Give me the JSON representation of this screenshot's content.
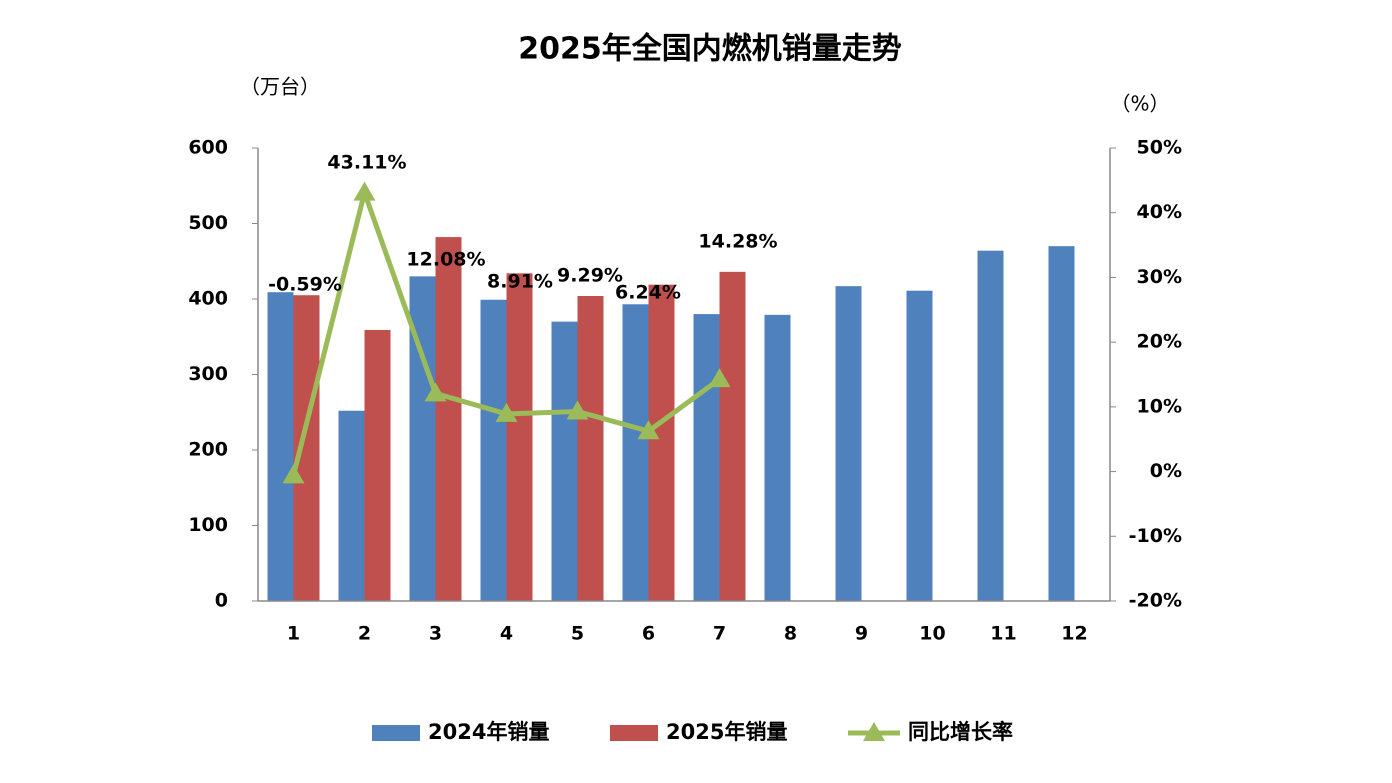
{
  "chart_data": {
    "type": "bar_line",
    "title": "2025年全国内燃机销量走势",
    "y_label": "（万台）",
    "y2_label": "（%）",
    "categories": [
      "1",
      "2",
      "3",
      "4",
      "5",
      "6",
      "7",
      "8",
      "9",
      "10",
      "11",
      "12"
    ],
    "series": [
      {
        "name": "2024年销量",
        "type": "bar",
        "color": "#4f81bd",
        "values": [
          409,
          252,
          430,
          399,
          370,
          393,
          380,
          379,
          417,
          411,
          464,
          470
        ]
      },
      {
        "name": "2025年销量",
        "type": "bar",
        "color": "#c0504d",
        "values": [
          405,
          359,
          482,
          434,
          404,
          419,
          436,
          null,
          null,
          null,
          null,
          null
        ]
      },
      {
        "name": "同比增长率",
        "type": "line",
        "axis": "y2",
        "color": "#9bbb59",
        "marker": "triangle",
        "values": [
          -0.59,
          43.11,
          12.08,
          8.91,
          9.29,
          6.24,
          14.28,
          null,
          null,
          null,
          null,
          null
        ],
        "value_labels": [
          "-0.59%",
          "43.11%",
          "12.08%",
          "8.91%",
          "9.29%",
          "6.24%",
          "14.28%",
          null,
          null,
          null,
          null,
          null
        ]
      }
    ],
    "ylim": [
      0,
      600
    ],
    "yticks": [
      0,
      100,
      200,
      300,
      400,
      500,
      600
    ],
    "y2lim": [
      -20,
      50
    ],
    "y2ticks": [
      {
        "value": -20,
        "label": "-20%"
      },
      {
        "value": -10,
        "label": "-10%"
      },
      {
        "value": 0,
        "label": "0%"
      },
      {
        "value": 10,
        "label": "10%"
      },
      {
        "value": 20,
        "label": "20%"
      },
      {
        "value": 30,
        "label": "30%"
      },
      {
        "value": 40,
        "label": "40%"
      },
      {
        "value": 50,
        "label": "50%"
      }
    ],
    "legend": "bottom"
  }
}
